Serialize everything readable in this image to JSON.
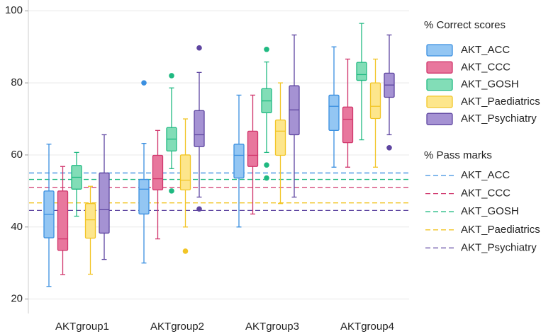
{
  "chart_data": {
    "type": "box",
    "categories": [
      "AKTgroup1",
      "AKTgroup2",
      "AKTgroup3",
      "AKTgroup4"
    ],
    "ylim": [
      16,
      103
    ],
    "yticks": [
      20,
      40,
      60,
      80,
      100
    ],
    "grid": true,
    "legend_title": "% Correct scores",
    "series": [
      {
        "name": "AKT_ACC",
        "color": "#3a8fe0",
        "fill": "#93c6f3",
        "boxes": [
          {
            "low": 23.5,
            "q1": 37,
            "median": 43.5,
            "q3": 50,
            "high": 63,
            "outliers": []
          },
          {
            "low": 30,
            "q1": 43.6,
            "median": 50.5,
            "q3": 53.2,
            "high": 63.2,
            "outliers": [
              80
            ]
          },
          {
            "low": 40,
            "q1": 53.6,
            "median": 59.9,
            "q3": 63,
            "high": 76.6,
            "outliers": []
          },
          {
            "low": 56.6,
            "q1": 66.8,
            "median": 73.5,
            "q3": 76.6,
            "high": 90,
            "outliers": []
          }
        ]
      },
      {
        "name": "AKT_CCC",
        "color": "#d0356b",
        "fill": "#e8779d",
        "boxes": [
          {
            "low": 26.8,
            "q1": 33.5,
            "median": 36.7,
            "q3": 50,
            "high": 56.8,
            "outliers": []
          },
          {
            "low": 36.7,
            "q1": 50.3,
            "median": 53.4,
            "q3": 59.9,
            "high": 66.8,
            "outliers": []
          },
          {
            "low": 43.6,
            "q1": 56.8,
            "median": 59.9,
            "q3": 66.6,
            "high": 76.6,
            "outliers": []
          },
          {
            "low": 56.6,
            "q1": 63.4,
            "median": 69.9,
            "q3": 73.3,
            "high": 86.6,
            "outliers": []
          }
        ]
      },
      {
        "name": "AKT_GOSH",
        "color": "#1fb981",
        "fill": "#82ddb7",
        "boxes": [
          {
            "low": 43,
            "q1": 50.5,
            "median": 53.8,
            "q3": 57.1,
            "high": 60.7,
            "outliers": []
          },
          {
            "low": 56.2,
            "q1": 61.1,
            "median": 64.4,
            "q3": 67.6,
            "high": 78.6,
            "outliers": [
              82,
              50
            ]
          },
          {
            "low": 60.7,
            "q1": 71.7,
            "median": 75,
            "q3": 78.4,
            "high": 85.8,
            "outliers": [
              89.3,
              57.2,
              53.6
            ]
          },
          {
            "low": 64.2,
            "q1": 80.7,
            "median": 82.3,
            "q3": 85.7,
            "high": 96.5,
            "outliers": []
          }
        ]
      },
      {
        "name": "AKT_Paediatrics",
        "color": "#f2c526",
        "fill": "#fde68c",
        "boxes": [
          {
            "low": 26.9,
            "q1": 36.9,
            "median": 42,
            "q3": 46.5,
            "high": 51.3,
            "outliers": []
          },
          {
            "low": 40,
            "q1": 50.3,
            "median": 53,
            "q3": 60,
            "high": 70,
            "outliers": [
              33.3
            ]
          },
          {
            "low": 46.5,
            "q1": 59.9,
            "median": 66.6,
            "q3": 69.7,
            "high": 80,
            "outliers": []
          },
          {
            "low": 56.6,
            "q1": 70.1,
            "median": 73.5,
            "q3": 80,
            "high": 86.6,
            "outliers": []
          }
        ]
      },
      {
        "name": "AKT_Psychiatry",
        "color": "#5e45a0",
        "fill": "#a592d3",
        "boxes": [
          {
            "low": 31,
            "q1": 38.3,
            "median": 44.8,
            "q3": 55,
            "high": 65.6,
            "outliers": []
          },
          {
            "low": 48.3,
            "q1": 62.3,
            "median": 65.6,
            "q3": 72.3,
            "high": 82.9,
            "outliers": [
              89.7,
              45
            ]
          },
          {
            "low": 48.3,
            "q1": 65.6,
            "median": 72.5,
            "q3": 79.2,
            "high": 93.3,
            "outliers": []
          },
          {
            "low": 65.6,
            "q1": 76,
            "median": 79.4,
            "q3": 82.7,
            "high": 93.3,
            "outliers": [
              62
            ]
          }
        ]
      }
    ],
    "pass_marks": {
      "title": "% Pass marks",
      "lines": [
        {
          "name": "AKT_ACC",
          "value": 55,
          "color": "#3a8fe0"
        },
        {
          "name": "AKT_CCC",
          "value": 51,
          "color": "#d0356b"
        },
        {
          "name": "AKT_GOSH",
          "value": 53.2,
          "color": "#1fb981"
        },
        {
          "name": "AKT_Paediatrics",
          "value": 46.7,
          "color": "#f2c526"
        },
        {
          "name": "AKT_Psychiatry",
          "value": 44.6,
          "color": "#5e45a0"
        }
      ]
    }
  }
}
